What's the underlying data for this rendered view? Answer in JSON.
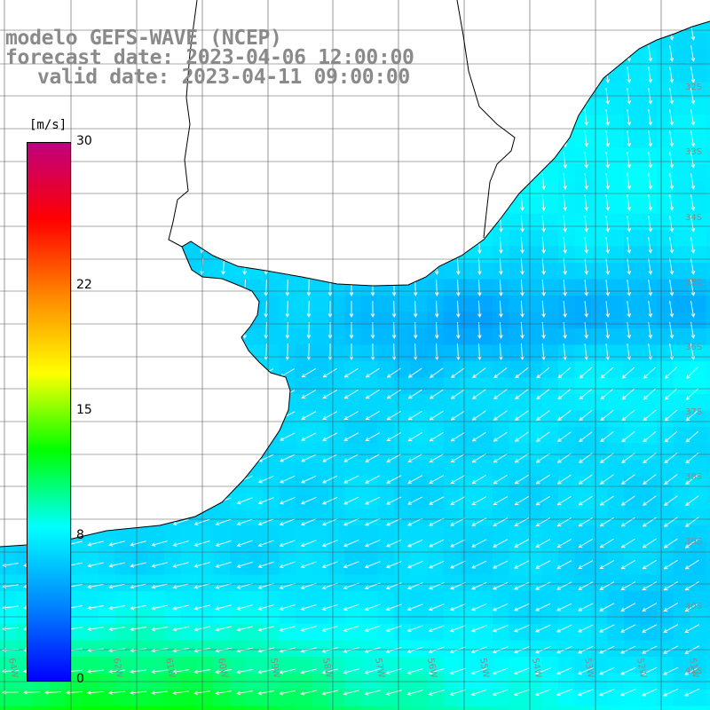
{
  "title": {
    "line1": "modelo GEFS-WAVE (NCEP)",
    "line2": "forecast date: 2023-04-06 12:00:00",
    "line3": "valid date: 2023-04-11 09:00:00"
  },
  "colorbar": {
    "unit": "[m/s]",
    "ticks": [
      "30",
      "22",
      "15",
      "8",
      "0"
    ],
    "tick_values": [
      30,
      22,
      15,
      8,
      0
    ],
    "range": [
      0,
      30
    ],
    "stops": [
      "#0000ff",
      "#0088ff",
      "#00ffff",
      "#00ff00",
      "#ffff00",
      "#ff8800",
      "#ff0000",
      "#c00080"
    ]
  },
  "map": {
    "variable": "wind speed and direction",
    "land_color": "#ffffff",
    "grid_color": "#555555",
    "coast_color": "#000000",
    "latitude_labels": [
      "32S",
      "33S",
      "34S",
      "35S",
      "36S",
      "37S",
      "38S",
      "39S",
      "40S",
      "41S"
    ],
    "longitude_labels": [
      "64W",
      "63W",
      "62W",
      "61W",
      "60W",
      "59W",
      "58W",
      "57W",
      "56W",
      "55W",
      "54W",
      "53W",
      "52W",
      "51W"
    ]
  }
}
